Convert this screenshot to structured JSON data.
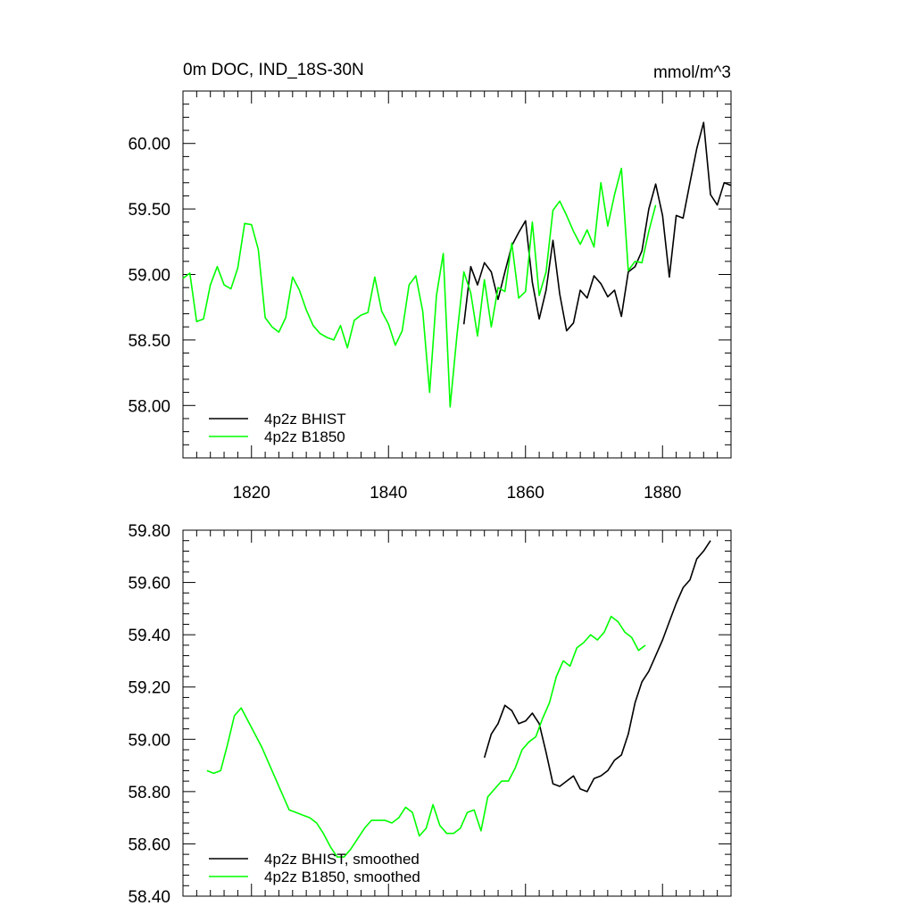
{
  "chart_data": [
    {
      "type": "line",
      "title": "0m DOC, IND_18S-30N",
      "units": "mmol/m^3",
      "xlim": [
        1810,
        1890
      ],
      "ylim": [
        57.6,
        60.4
      ],
      "x_ticks": [
        1820,
        1840,
        1860,
        1880
      ],
      "y_ticks": [
        "58.00",
        "58.50",
        "59.00",
        "59.50",
        "60.00"
      ],
      "legend_position": "bottom-left",
      "series": [
        {
          "name": "4p2z BHIST",
          "color": "#000000",
          "x_start": 1851,
          "values": [
            58.62,
            59.06,
            58.92,
            59.09,
            59.02,
            58.81,
            59.02,
            59.22,
            59.32,
            59.41,
            58.94,
            58.66,
            58.88,
            59.26,
            58.85,
            58.57,
            58.63,
            58.88,
            58.82,
            58.99,
            58.93,
            58.83,
            58.88,
            58.68,
            59.02,
            59.06,
            59.18,
            59.5,
            59.69,
            59.45,
            58.98,
            59.45,
            59.43,
            59.7,
            59.96,
            60.16,
            59.61,
            59.53,
            59.7,
            59.68
          ]
        },
        {
          "name": "4p2z B1850",
          "color": "#00ff00",
          "x_start": 1810,
          "values": [
            58.97,
            59.01,
            58.64,
            58.66,
            58.92,
            59.06,
            58.92,
            58.89,
            59.05,
            59.39,
            59.38,
            59.19,
            58.67,
            58.6,
            58.56,
            58.67,
            58.98,
            58.88,
            58.73,
            58.61,
            58.55,
            58.52,
            58.5,
            58.61,
            58.44,
            58.65,
            58.69,
            58.71,
            58.98,
            58.72,
            58.62,
            58.46,
            58.57,
            58.92,
            58.99,
            58.72,
            58.1,
            58.84,
            59.16,
            57.99,
            58.54,
            59.02,
            58.86,
            58.53,
            58.96,
            58.6,
            58.9,
            58.87,
            59.24,
            58.82,
            58.87,
            59.4,
            58.84,
            59.02,
            59.49,
            59.56,
            59.45,
            59.33,
            59.23,
            59.34,
            59.21,
            59.7,
            59.37,
            59.61,
            59.81,
            59.03,
            59.1,
            59.09,
            59.33,
            59.53
          ]
        }
      ]
    },
    {
      "type": "line",
      "title": "",
      "xlim": [
        1810,
        1890
      ],
      "ylim": [
        58.4,
        59.8
      ],
      "y_ticks": [
        "58.40",
        "58.60",
        "58.80",
        "59.00",
        "59.20",
        "59.40",
        "59.60",
        "59.80"
      ],
      "legend_position": "bottom-left",
      "series": [
        {
          "name": "4p2z BHIST, smoothed",
          "color": "#000000",
          "x_start": 1854,
          "values": [
            58.93,
            59.02,
            59.06,
            59.13,
            59.11,
            59.06,
            59.07,
            59.1,
            59.06,
            58.95,
            58.83,
            58.82,
            58.84,
            58.86,
            58.81,
            58.8,
            58.85,
            58.86,
            58.88,
            58.92,
            58.94,
            59.02,
            59.14,
            59.22,
            59.26,
            59.32,
            59.38,
            59.45,
            59.52,
            59.58,
            59.61,
            59.69,
            59.72,
            59.76
          ]
        },
        {
          "name": "4p2z B1850, smoothed",
          "color": "#00ff00",
          "x_start": 1813.5,
          "values": [
            58.88,
            58.87,
            58.88,
            58.98,
            59.09,
            59.12,
            59.07,
            59.02,
            58.97,
            58.91,
            58.85,
            58.79,
            58.73,
            58.72,
            58.71,
            58.7,
            58.68,
            58.64,
            58.59,
            58.55,
            58.55,
            58.58,
            58.62,
            58.66,
            58.69,
            58.69,
            58.69,
            58.68,
            58.7,
            58.74,
            58.72,
            58.63,
            58.66,
            58.75,
            58.67,
            58.64,
            58.64,
            58.66,
            58.72,
            58.73,
            58.65,
            58.78,
            58.81,
            58.84,
            58.84,
            58.89,
            58.96,
            58.99,
            59.01,
            59.08,
            59.14,
            59.24,
            59.3,
            59.28,
            59.35,
            59.37,
            59.4,
            59.38,
            59.41,
            59.47,
            59.45,
            59.41,
            59.39,
            59.34,
            59.36
          ]
        }
      ]
    }
  ]
}
